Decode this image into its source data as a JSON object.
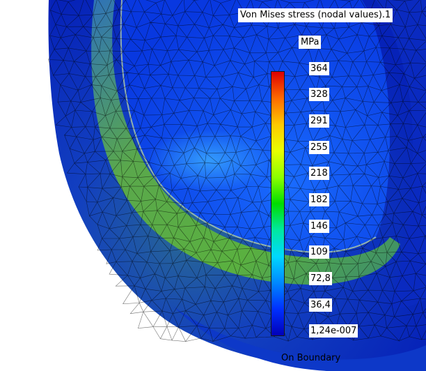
{
  "legend": {
    "title": "Von Mises stress (nodal values).1",
    "unit": "MPa",
    "ticks": [
      "364",
      "328",
      "291",
      "255",
      "218",
      "182",
      "146",
      "109",
      "72,8",
      "36,4",
      "1,24e-007"
    ],
    "gradient_colors": [
      "#dd0000",
      "#ff6a00",
      "#ffc800",
      "#e8ff00",
      "#8cff00",
      "#00dd00",
      "#00e8a0",
      "#00d8ff",
      "#0088ff",
      "#0030ff",
      "#0000b8"
    ]
  },
  "footer": {
    "label": "On Boundary"
  },
  "model": {
    "mesh_color": "#000000",
    "base_color": "#0a2fd0",
    "ring_stress_color": "#5ab040"
  }
}
